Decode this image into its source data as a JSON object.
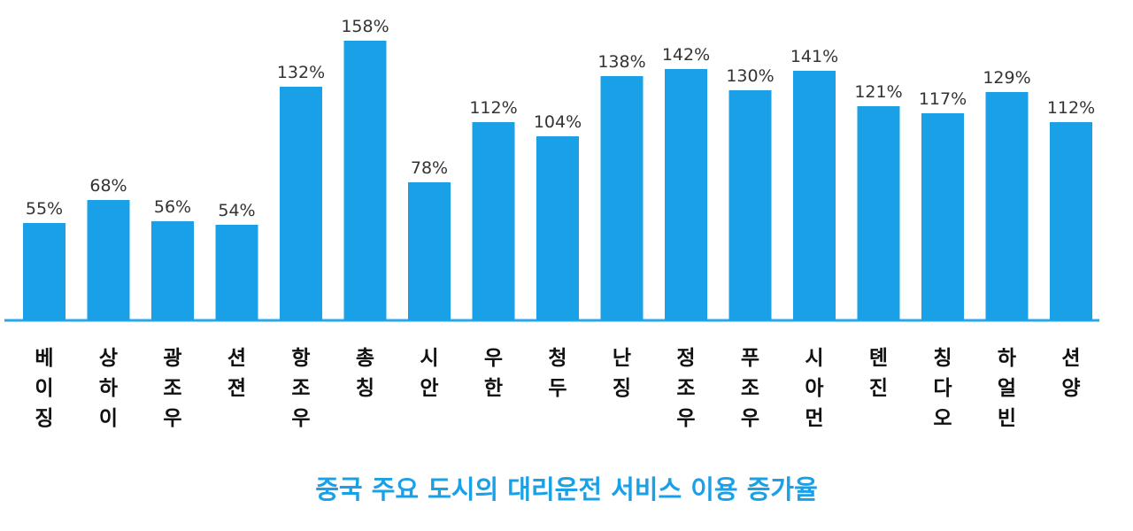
{
  "chart_data": {
    "type": "bar",
    "title": "중국 주요 도시의 대리운전 서비스 이용 증가율",
    "categories": [
      "베이징",
      "상하이",
      "광조우",
      "션젼",
      "항조우",
      "총칭",
      "시안",
      "우한",
      "청두",
      "난징",
      "정조우",
      "푸조우",
      "시아먼",
      "톈진",
      "칭다오",
      "하얼빈",
      "션양"
    ],
    "values": [
      55,
      68,
      56,
      54,
      132,
      158,
      78,
      112,
      104,
      138,
      142,
      130,
      141,
      121,
      117,
      129,
      112
    ],
    "value_labels": [
      "55%",
      "68%",
      "56%",
      "54%",
      "132%",
      "158%",
      "78%",
      "112%",
      "104%",
      "138%",
      "142%",
      "130%",
      "141%",
      "121%",
      "117%",
      "129%",
      "112%"
    ],
    "unit": "%",
    "ylim": [
      0,
      160
    ],
    "grid": false,
    "colors": {
      "bar": "#1aa0e6",
      "baseline": "#29a8e8",
      "title": "#1aa0e6"
    }
  }
}
